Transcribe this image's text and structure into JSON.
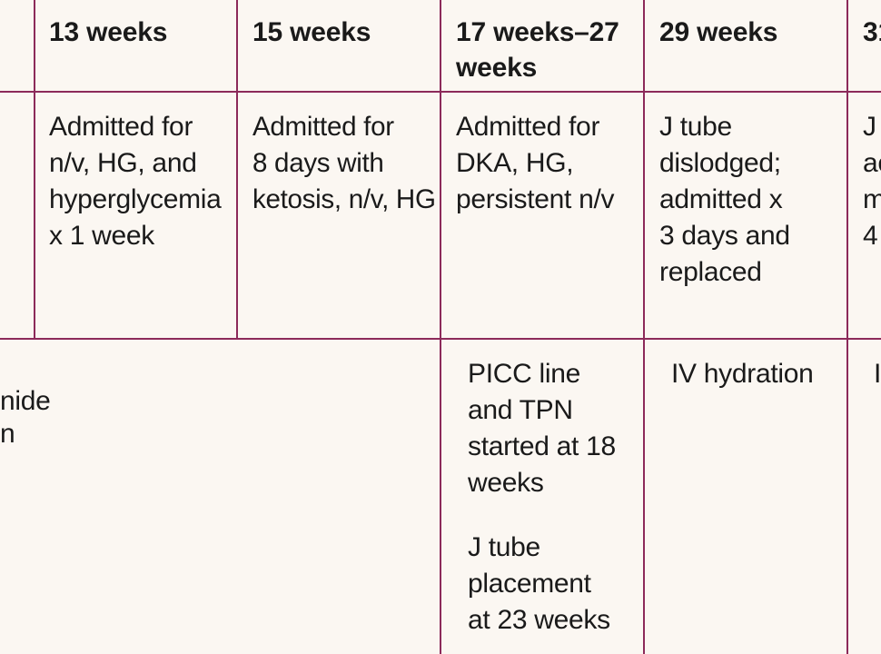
{
  "header": {
    "week13": "13 weeks",
    "week15": "15 weeks",
    "week17_27": [
      "17 weeks–27",
      "weeks"
    ],
    "week29": "29 weeks",
    "week31_partial": "31"
  },
  "row_admissions": {
    "week13": [
      "Admitted for",
      "n/v, HG, and",
      "hyperglycemia",
      "x 1 week"
    ],
    "week15": [
      "Admitted for",
      "8 days with",
      "ketosis, n/v, HG"
    ],
    "week17_27": [
      "Admitted for",
      "DKA, HG,",
      "persistent n/v"
    ],
    "week29": [
      "J tube",
      "dislodged;",
      "admitted x",
      "3 days and",
      "replaced"
    ],
    "week31_partial": [
      "J",
      "ac",
      "m",
      "4"
    ]
  },
  "row_treatment": {
    "left_partial": [
      "nide",
      "n"
    ],
    "week17_27_a": [
      "PICC line",
      "and TPN",
      "started at 18",
      "weeks"
    ],
    "week17_27_b": [
      "J tube",
      "placement",
      "at 23 weeks"
    ],
    "week29": [
      "IV hydration"
    ],
    "week31_partial": [
      "I"
    ]
  }
}
